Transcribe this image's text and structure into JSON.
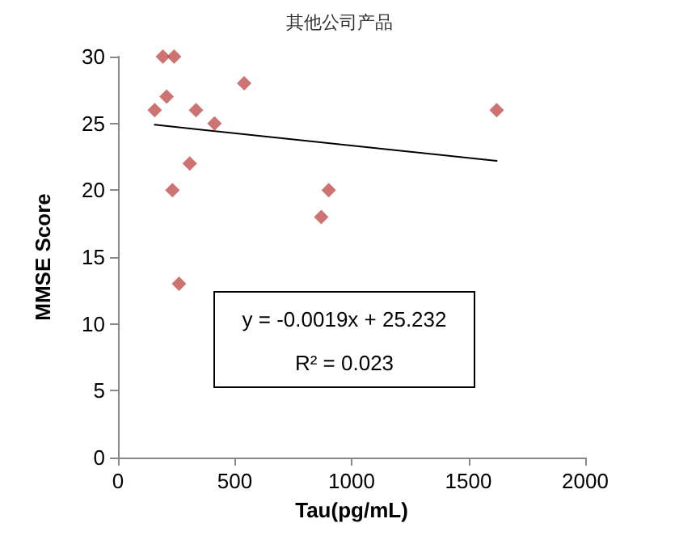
{
  "chart_data": {
    "type": "scatter",
    "title": "其他公司产品",
    "xlabel": "Tau(pg/mL)",
    "ylabel": "MMSE Score",
    "xlim": [
      0,
      2000
    ],
    "xticks": [
      0,
      500,
      1000,
      1500,
      2000
    ],
    "ylim": [
      0,
      30
    ],
    "yticks": [
      0,
      5,
      10,
      15,
      20,
      25,
      30
    ],
    "grid": false,
    "marker": "diamond",
    "series": [
      {
        "color": "#c0504d",
        "x": [
          157,
          192,
          240,
          208,
          334,
          413,
          540,
          307,
          233,
          261,
          870,
          902,
          1621
        ],
        "values": [
          26,
          30,
          30,
          27,
          26,
          25,
          28,
          22,
          20,
          13,
          18,
          20,
          26
        ]
      },
      {
        "type": "line",
        "color": "#000000",
        "marker": "none",
        "x": [
          157,
          1621
        ],
        "values": [
          24.9,
          22.2
        ]
      }
    ],
    "annotations": [
      "y = -0.0019x + 25.232",
      "R² = 0.023"
    ]
  }
}
